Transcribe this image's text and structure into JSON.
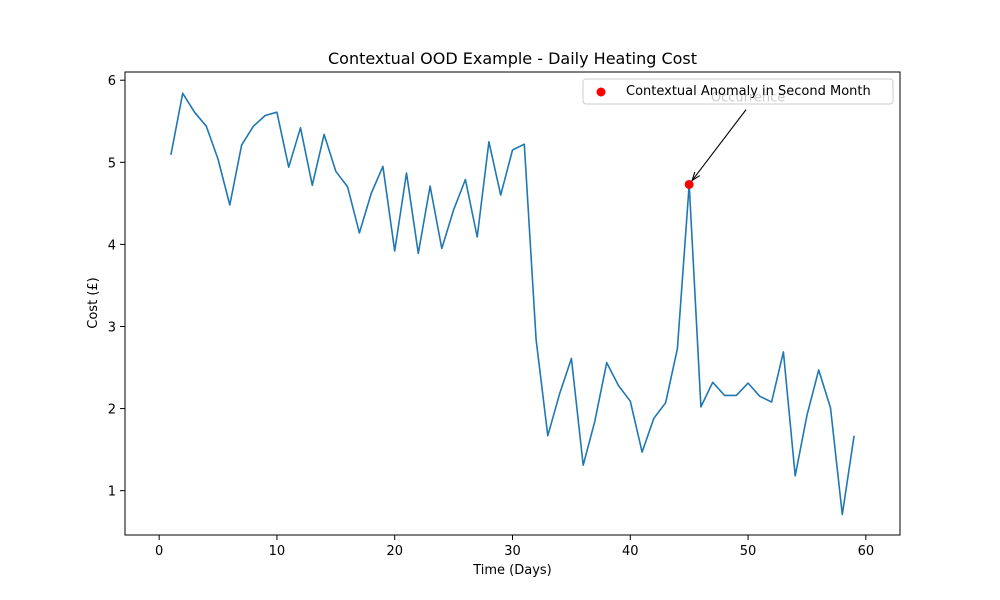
{
  "chart_data": {
    "type": "line",
    "title": "Contextual OOD Example - Daily Heating Cost",
    "xlabel": "Time (Days)",
    "ylabel": "Cost (£)",
    "xlim": [
      -2.9,
      62.9
    ],
    "ylim": [
      0.46,
      6.1
    ],
    "xticks": [
      0,
      10,
      20,
      30,
      40,
      50,
      60
    ],
    "yticks": [
      1,
      2,
      3,
      4,
      5,
      6
    ],
    "grid": false,
    "legend_position": "top-right",
    "series": [
      {
        "name": "",
        "color": "#1f77b4",
        "x": [
          1,
          2,
          3,
          4,
          5,
          6,
          7,
          8,
          9,
          10,
          11,
          12,
          13,
          14,
          15,
          16,
          17,
          18,
          19,
          20,
          21,
          22,
          23,
          24,
          25,
          26,
          27,
          28,
          29,
          30,
          31,
          32,
          33,
          34,
          35,
          36,
          37,
          38,
          39,
          40,
          41,
          42,
          43,
          44,
          45,
          46,
          47,
          48,
          49,
          50,
          51,
          52,
          53,
          54,
          55,
          56,
          57,
          58,
          59
        ],
        "y": [
          5.09,
          5.84,
          5.61,
          5.44,
          5.04,
          4.48,
          5.21,
          5.44,
          5.57,
          5.61,
          4.94,
          5.42,
          4.72,
          5.34,
          4.89,
          4.7,
          4.14,
          4.62,
          4.95,
          3.92,
          4.87,
          3.89,
          4.71,
          3.95,
          4.42,
          4.79,
          4.09,
          5.25,
          4.6,
          5.15,
          5.22,
          2.84,
          1.67,
          2.18,
          2.61,
          1.31,
          1.85,
          2.56,
          2.28,
          2.09,
          1.47,
          1.88,
          2.07,
          2.73,
          4.73,
          2.02,
          2.32,
          2.16,
          2.16,
          2.31,
          2.15,
          2.08,
          2.69,
          1.18,
          1.92,
          2.47,
          2.01,
          0.71,
          1.67
        ]
      }
    ],
    "anomaly": {
      "legend_label": "Contextual Anomaly in Second Month",
      "color": "#ff0000",
      "x": 45,
      "y": 4.73,
      "annotation_text": "Occurrence",
      "annotation_text_x": 50,
      "annotation_text_y": 5.8
    }
  }
}
